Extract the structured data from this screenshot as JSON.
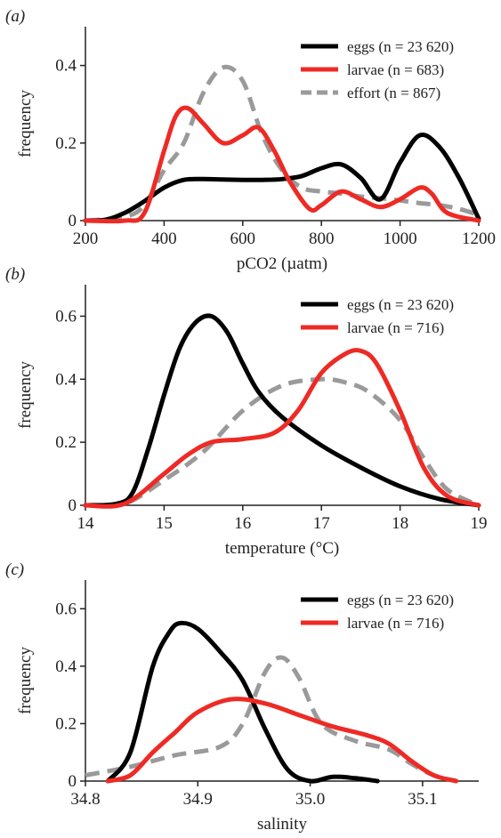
{
  "colors": {
    "eggs": "#000000",
    "larvae": "#ee2a24",
    "effort": "#9a9a9a"
  },
  "chart_data": [
    {
      "type": "line",
      "panel_label": "(a)",
      "xlabel": "pCO2 (µatm)",
      "ylabel": "frequency",
      "xlim": [
        200,
        1200
      ],
      "ylim": [
        0,
        0.5
      ],
      "xticks": [
        200,
        400,
        600,
        800,
        1000,
        1200
      ],
      "yticks": [
        0,
        0.2,
        0.4
      ],
      "xtick_labels": [
        "200",
        "400",
        "600",
        "800",
        "1000",
        "1200"
      ],
      "ytick_labels": [
        "0",
        "0.2",
        "0.4"
      ],
      "grid": false,
      "legend_position": "top-right",
      "series": [
        {
          "name": "eggs",
          "legend_label": "eggs (n = 23 620)",
          "style": "solid",
          "x": [
            200,
            250,
            300,
            350,
            400,
            450,
            500,
            550,
            600,
            650,
            700,
            750,
            800,
            850,
            900,
            950,
            1000,
            1050,
            1100,
            1150,
            1200
          ],
          "y": [
            0,
            0.002,
            0.02,
            0.05,
            0.085,
            0.105,
            0.107,
            0.106,
            0.105,
            0.105,
            0.107,
            0.115,
            0.135,
            0.145,
            0.11,
            0.055,
            0.15,
            0.22,
            0.19,
            0.11,
            0.005
          ]
        },
        {
          "name": "larvae",
          "legend_label": "larvae (n = 683)",
          "style": "solid",
          "x": [
            200,
            300,
            350,
            400,
            430,
            460,
            500,
            550,
            600,
            640,
            680,
            720,
            770,
            800,
            850,
            900,
            950,
            1000,
            1050,
            1080,
            1120,
            1200
          ],
          "y": [
            0,
            0,
            0.02,
            0.18,
            0.27,
            0.29,
            0.25,
            0.2,
            0.22,
            0.24,
            0.18,
            0.1,
            0.03,
            0.04,
            0.075,
            0.055,
            0.035,
            0.055,
            0.085,
            0.07,
            0.02,
            0
          ]
        },
        {
          "name": "effort",
          "legend_label": "effort (n = 867)",
          "style": "dashed",
          "x": [
            200,
            300,
            350,
            400,
            450,
            500,
            550,
            600,
            650,
            700,
            750,
            800,
            850,
            900,
            950,
            1000,
            1050,
            1100,
            1150,
            1200
          ],
          "y": [
            0,
            0.01,
            0.04,
            0.13,
            0.2,
            0.33,
            0.395,
            0.36,
            0.22,
            0.13,
            0.085,
            0.075,
            0.07,
            0.062,
            0.058,
            0.052,
            0.045,
            0.04,
            0.03,
            0.015
          ]
        }
      ]
    },
    {
      "type": "line",
      "panel_label": "(b)",
      "xlabel": "temperature (°C)",
      "ylabel": "frequency",
      "xlim": [
        14,
        19
      ],
      "ylim": [
        0,
        0.7
      ],
      "xticks": [
        14,
        15,
        16,
        17,
        18,
        19
      ],
      "yticks": [
        0,
        0.2,
        0.4,
        0.6
      ],
      "xtick_labels": [
        "14",
        "15",
        "16",
        "17",
        "18",
        "19"
      ],
      "ytick_labels": [
        "0",
        "0.2",
        "0.4",
        "0.6"
      ],
      "grid": false,
      "legend_position": "top-right",
      "series": [
        {
          "name": "eggs",
          "legend_label": "eggs (n = 23 620)",
          "style": "solid",
          "x": [
            14,
            14.4,
            14.6,
            14.8,
            15.0,
            15.2,
            15.4,
            15.6,
            15.8,
            16.0,
            16.2,
            16.5,
            17.0,
            17.5,
            18.0,
            18.5,
            19.0
          ],
          "y": [
            0,
            0.005,
            0.04,
            0.18,
            0.35,
            0.5,
            0.58,
            0.6,
            0.55,
            0.45,
            0.36,
            0.28,
            0.19,
            0.12,
            0.06,
            0.02,
            0
          ]
        },
        {
          "name": "larvae",
          "legend_label": "larvae (n = 716)",
          "style": "solid",
          "x": [
            14,
            14.5,
            15.0,
            15.3,
            15.6,
            16.0,
            16.4,
            16.7,
            17.0,
            17.3,
            17.5,
            17.7,
            18.0,
            18.3,
            18.6,
            19.0
          ],
          "y": [
            0,
            0.005,
            0.1,
            0.16,
            0.2,
            0.21,
            0.23,
            0.3,
            0.42,
            0.48,
            0.49,
            0.45,
            0.3,
            0.12,
            0.03,
            0
          ]
        },
        {
          "name": "effort",
          "legend_label": "",
          "style": "dashed",
          "x": [
            14,
            14.5,
            15.0,
            15.5,
            16.0,
            16.5,
            17.0,
            17.3,
            17.6,
            18.0,
            18.3,
            18.6,
            19.0
          ],
          "y": [
            0,
            0.005,
            0.08,
            0.17,
            0.3,
            0.38,
            0.4,
            0.39,
            0.36,
            0.27,
            0.15,
            0.05,
            0
          ]
        }
      ]
    },
    {
      "type": "line",
      "panel_label": "(c)",
      "xlabel": "salinity",
      "ylabel": "frequency",
      "xlim": [
        34.8,
        35.15
      ],
      "ylim": [
        0,
        0.7
      ],
      "xticks": [
        34.8,
        34.9,
        35.0,
        35.1
      ],
      "yticks": [
        0,
        0.2,
        0.4,
        0.6
      ],
      "xtick_labels": [
        "34.8",
        "34.9",
        "35.0",
        "35.1"
      ],
      "ytick_labels": [
        "0",
        "0.2",
        "0.4",
        "0.6"
      ],
      "grid": false,
      "legend_position": "top-right",
      "series": [
        {
          "name": "eggs",
          "legend_label": "eggs (n = 23 620)",
          "style": "solid",
          "x": [
            34.82,
            34.84,
            34.86,
            34.875,
            34.885,
            34.9,
            34.92,
            34.94,
            34.96,
            34.98,
            35.0,
            35.02,
            35.04,
            35.06
          ],
          "y": [
            0,
            0.1,
            0.4,
            0.52,
            0.55,
            0.53,
            0.45,
            0.35,
            0.18,
            0.04,
            0,
            0.015,
            0.01,
            0
          ]
        },
        {
          "name": "larvae",
          "legend_label": "larvae (n = 716)",
          "style": "solid",
          "x": [
            34.82,
            34.84,
            34.86,
            34.88,
            34.9,
            34.93,
            34.96,
            34.99,
            35.02,
            35.05,
            35.07,
            35.09,
            35.11,
            35.13
          ],
          "y": [
            0,
            0.02,
            0.1,
            0.17,
            0.24,
            0.285,
            0.27,
            0.23,
            0.19,
            0.16,
            0.13,
            0.07,
            0.02,
            0
          ]
        },
        {
          "name": "effort",
          "legend_label": "",
          "style": "dashed",
          "x": [
            34.8,
            34.84,
            34.88,
            34.92,
            34.94,
            34.96,
            34.975,
            34.99,
            35.01,
            35.04,
            35.07,
            35.09,
            35.11,
            35.13
          ],
          "y": [
            0.02,
            0.05,
            0.09,
            0.12,
            0.2,
            0.38,
            0.43,
            0.36,
            0.2,
            0.14,
            0.11,
            0.06,
            0.02,
            0
          ]
        }
      ]
    }
  ]
}
